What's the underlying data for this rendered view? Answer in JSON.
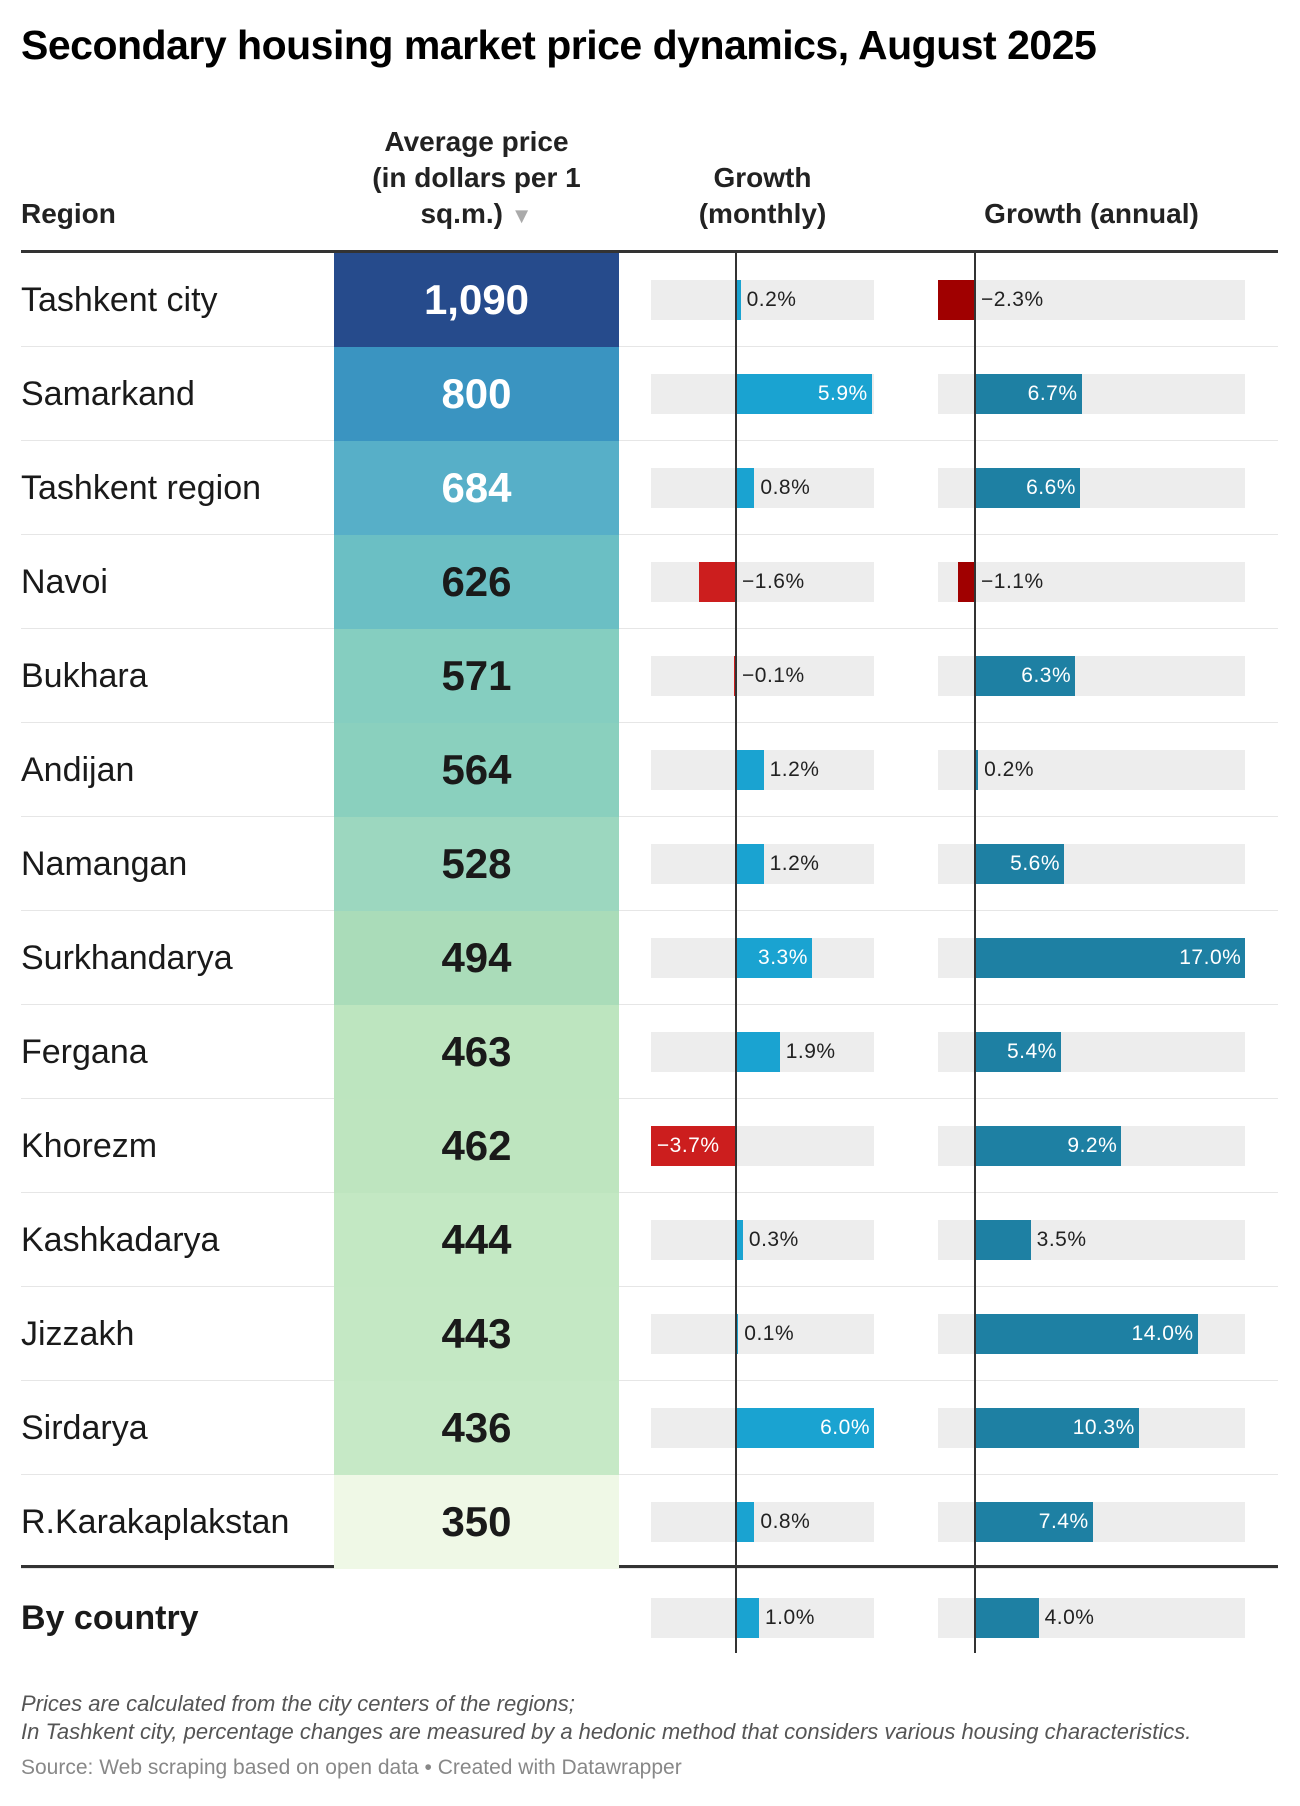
{
  "chart_data": {
    "type": "table",
    "title": "Secondary housing market price dynamics, August 2025",
    "columns": {
      "region": "Region",
      "price_l1": "Average price",
      "price_l2": "(in dollars per 1",
      "price_l3": "sq.m.)",
      "sort_icon": "▼",
      "monthly_l1": "Growth",
      "monthly_l2": "(monthly)",
      "annual": "Growth (annual)"
    },
    "rows": [
      {
        "region": "Tashkent city",
        "price": "1,090",
        "monthly": 0.2,
        "annual": -2.3,
        "color": "#264b8c",
        "text": "#ffffff"
      },
      {
        "region": "Samarkand",
        "price": "800",
        "monthly": 5.9,
        "annual": 6.7,
        "color": "#3a94c1",
        "text": "#ffffff"
      },
      {
        "region": "Tashkent region",
        "price": "684",
        "monthly": 0.8,
        "annual": 6.6,
        "color": "#57afc8",
        "text": "#ffffff"
      },
      {
        "region": "Navoi",
        "price": "626",
        "monthly": -1.6,
        "annual": -1.1,
        "color": "#6bbfc4",
        "text": "#1a1a1a"
      },
      {
        "region": "Bukhara",
        "price": "571",
        "monthly": -0.1,
        "annual": 6.3,
        "color": "#85cec0",
        "text": "#1a1a1a"
      },
      {
        "region": "Andijan",
        "price": "564",
        "monthly": 1.2,
        "annual": 0.2,
        "color": "#8ad0be",
        "text": "#1a1a1a"
      },
      {
        "region": "Namangan",
        "price": "528",
        "monthly": 1.2,
        "annual": 5.6,
        "color": "#9cd7bf",
        "text": "#1a1a1a"
      },
      {
        "region": "Surkhandarya",
        "price": "494",
        "monthly": 3.3,
        "annual": 17.0,
        "color": "#aadcb9",
        "text": "#1a1a1a"
      },
      {
        "region": "Fergana",
        "price": "463",
        "monthly": 1.9,
        "annual": 5.4,
        "color": "#bde5bf",
        "text": "#1a1a1a"
      },
      {
        "region": "Khorezm",
        "price": "462",
        "monthly": -3.7,
        "annual": 9.2,
        "color": "#bee5bf",
        "text": "#1a1a1a"
      },
      {
        "region": "Kashkadarya",
        "price": "444",
        "monthly": 0.3,
        "annual": 3.5,
        "color": "#c3e8c3",
        "text": "#1a1a1a"
      },
      {
        "region": "Jizzakh",
        "price": "443",
        "monthly": 0.1,
        "annual": 14.0,
        "color": "#c4e8c4",
        "text": "#1a1a1a"
      },
      {
        "region": "Sirdarya",
        "price": "436",
        "monthly": 6.0,
        "annual": 10.3,
        "color": "#c6e9c6",
        "text": "#1a1a1a"
      },
      {
        "region": "R.Karakaplakstan",
        "price": "350",
        "monthly": 0.8,
        "annual": 7.4,
        "color": "#eff8e6",
        "text": "#1a1a1a"
      }
    ],
    "total": {
      "region": "By country",
      "monthly": 1.0,
      "annual": 4.0
    },
    "colors": {
      "monthly_pos": "#1aa3d1",
      "annual_pos": "#1e80a3",
      "monthly_neg": "#cc1e1e",
      "annual_neg": "#a00000",
      "track": "#ededed"
    }
  },
  "notes": {
    "line1": "Prices are calculated from the city centers of the regions;",
    "line2": "In Tashkent city, percentage changes are measured by a hedonic method that considers various housing characteristics."
  },
  "source": "Source: Web scraping based on open data • Created with Datawrapper"
}
